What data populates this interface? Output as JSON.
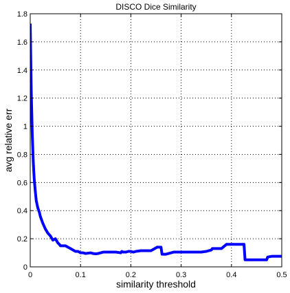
{
  "chart_data": {
    "type": "line",
    "title": "DISCO Dice Similarity",
    "xlabel": "similarity threshold",
    "ylabel": "avg relative err",
    "xlim": [
      0,
      0.5
    ],
    "ylim": [
      0,
      1.8
    ],
    "grid": true,
    "xticks": [
      0,
      0.1,
      0.2,
      0.3,
      0.4,
      0.5
    ],
    "yticks": [
      0,
      0.2,
      0.4,
      0.6,
      0.8,
      1,
      1.2,
      1.4,
      1.6,
      1.8
    ],
    "xtick_labels": [
      "0",
      "0.1",
      "0.2",
      "0.3",
      "0.4",
      "0.5"
    ],
    "ytick_labels": [
      "0",
      "0.2",
      "0.4",
      "0.6",
      "0.8",
      "1",
      "1.2",
      "1.4",
      "1.6",
      "1.8"
    ],
    "series": [
      {
        "color": "#0000ff",
        "x": [
          0,
          0.002,
          0.004,
          0.006,
          0.008,
          0.01,
          0.012,
          0.015,
          0.018,
          0.02,
          0.025,
          0.03,
          0.035,
          0.04,
          0.045,
          0.05,
          0.055,
          0.058,
          0.06,
          0.065,
          0.07,
          0.075,
          0.08,
          0.085,
          0.09,
          0.095,
          0.1,
          0.105,
          0.11,
          0.12,
          0.125,
          0.13,
          0.135,
          0.14,
          0.145,
          0.15,
          0.16,
          0.17,
          0.18,
          0.182,
          0.185,
          0.19,
          0.195,
          0.2,
          0.205,
          0.21,
          0.22,
          0.23,
          0.24,
          0.25,
          0.252,
          0.26,
          0.262,
          0.265,
          0.27,
          0.28,
          0.285,
          0.29,
          0.3,
          0.31,
          0.32,
          0.33,
          0.34,
          0.35,
          0.36,
          0.362,
          0.37,
          0.38,
          0.39,
          0.4,
          0.41,
          0.42,
          0.425,
          0.427,
          0.43,
          0.44,
          0.45,
          0.46,
          0.47,
          0.472,
          0.48,
          0.49,
          0.5
        ],
        "y": [
          1.73,
          1.25,
          0.95,
          0.75,
          0.62,
          0.54,
          0.47,
          0.42,
          0.39,
          0.36,
          0.31,
          0.27,
          0.24,
          0.22,
          0.19,
          0.2,
          0.17,
          0.16,
          0.15,
          0.15,
          0.15,
          0.14,
          0.13,
          0.12,
          0.11,
          0.11,
          0.1,
          0.1,
          0.095,
          0.1,
          0.095,
          0.093,
          0.095,
          0.1,
          0.105,
          0.105,
          0.105,
          0.105,
          0.1,
          0.11,
          0.105,
          0.105,
          0.11,
          0.11,
          0.105,
          0.11,
          0.115,
          0.115,
          0.115,
          0.135,
          0.14,
          0.14,
          0.09,
          0.09,
          0.09,
          0.1,
          0.105,
          0.105,
          0.105,
          0.105,
          0.105,
          0.105,
          0.105,
          0.11,
          0.12,
          0.13,
          0.13,
          0.13,
          0.16,
          0.16,
          0.16,
          0.16,
          0.16,
          0.05,
          0.05,
          0.05,
          0.05,
          0.05,
          0.05,
          0.07,
          0.075,
          0.075,
          0.075
        ]
      }
    ]
  }
}
